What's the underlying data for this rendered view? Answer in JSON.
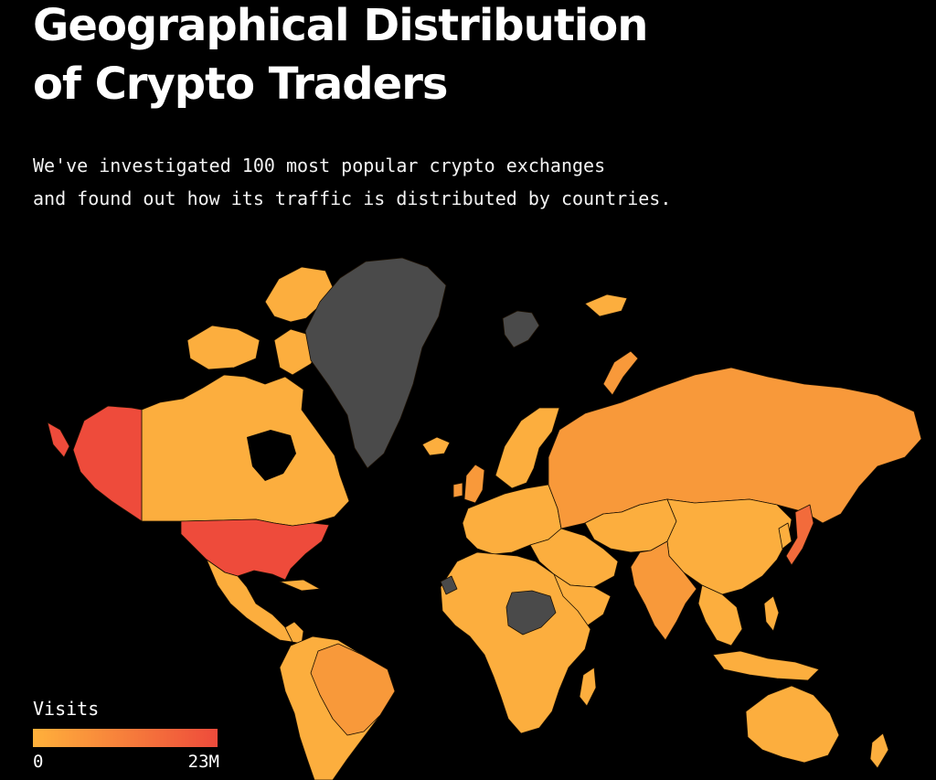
{
  "header": {
    "title_lines": [
      "Geographical Distribution",
      "of Crypto Traders"
    ],
    "subtitle_lines": [
      "We've investigated 100 most popular crypto exchanges",
      "and found out how its traffic is distributed by countries."
    ]
  },
  "legend": {
    "title": "Visits",
    "min_label": "0",
    "max_label": "23M",
    "color_low": "#FFB13B",
    "color_high": "#EE4B3B"
  },
  "colors": {
    "background": "#000000",
    "no_data": "#4a4a4a",
    "low": "#FCAE3E",
    "mid": "#F8993A",
    "high": "#EE4B3B"
  },
  "map": {
    "regions": [
      {
        "name": "united-states",
        "level": "high"
      },
      {
        "name": "alaska",
        "level": "high"
      },
      {
        "name": "russia",
        "level": "mid"
      },
      {
        "name": "brazil",
        "level": "mid"
      },
      {
        "name": "japan",
        "level": "mid-high"
      },
      {
        "name": "greenland",
        "level": "no-data"
      },
      {
        "name": "svalbard",
        "level": "no-data"
      },
      {
        "name": "central-africa",
        "level": "no-data"
      }
    ]
  }
}
